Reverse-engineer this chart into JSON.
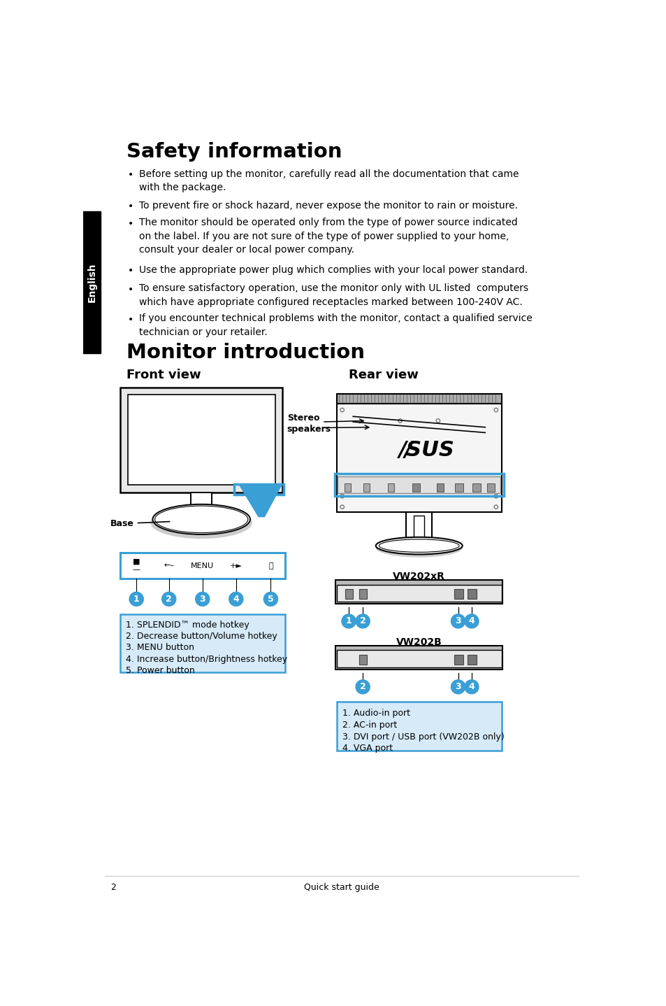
{
  "bg_color": "#ffffff",
  "tab_color": "#000000",
  "tab_text": "English",
  "title1": "Safety information",
  "title2": "Monitor introduction",
  "subtitle_front": "Front view",
  "subtitle_rear": "Rear view",
  "bullet_points": [
    "Before setting up the monitor, carefully read all the documentation that came\nwith the package.",
    "To prevent fire or shock hazard, never expose the monitor to rain or moisture.",
    "The monitor should be operated only from the type of power source indicated\non the label. If you are not sure of the type of power supplied to your home,\nconsult your dealer or local power company.",
    "Use the appropriate power plug which complies with your local power standard.",
    "To ensure satisfactory operation, use the monitor only with UL listed  computers\nwhich have appropriate configured receptacles marked between 100-240V AC.",
    "If you encounter technical problems with the monitor, contact a qualified service\ntechnician or your retailer."
  ],
  "front_labels": [
    "1. SPLENDID™ mode hotkey",
    "2. Decrease button/Volume hotkey",
    "3. MENU button",
    "4. Increase button/Brightness hotkey",
    "5. Power button"
  ],
  "rear_labels": [
    "1. Audio-in port",
    "2. AC-in port",
    "3. DVI port / USB port (VW202B only)",
    "4. VGA port"
  ],
  "vw202xr_label": "VW202xR",
  "vw202b_label": "VW202B",
  "stereo_label": "Stereo\nspeakers",
  "base_label": "Base",
  "footer_num": "2",
  "footer_guide": "Quick start guide",
  "blue_color": "#3a9fd5",
  "dark_blue": "#1a7ab5"
}
